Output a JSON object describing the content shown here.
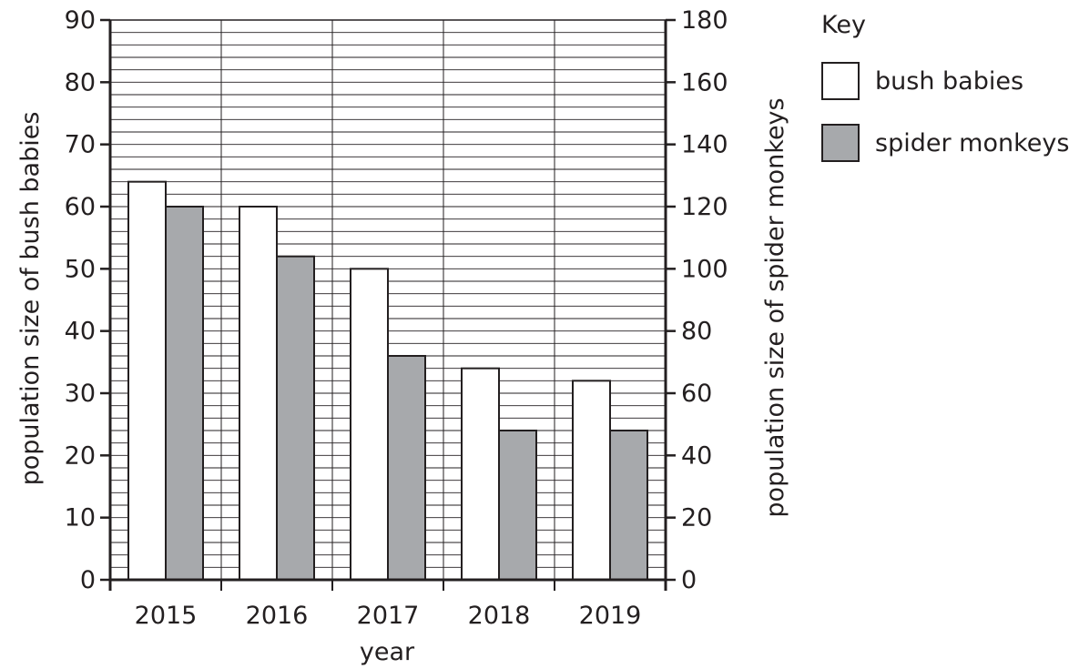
{
  "chart_data": {
    "type": "bar",
    "categories": [
      "2015",
      "2016",
      "2017",
      "2018",
      "2019"
    ],
    "xlabel": "year",
    "ylabel_left": "population size of bush babies",
    "ylabel_right": "population size of spider monkeys",
    "ylim_left": [
      0,
      90
    ],
    "ylim_right": [
      0,
      180
    ],
    "yticks_left": [
      0,
      10,
      20,
      30,
      40,
      50,
      60,
      70,
      80,
      90
    ],
    "yticks_right": [
      0,
      20,
      40,
      60,
      80,
      100,
      120,
      140,
      160,
      180
    ],
    "grid": true,
    "legend_title": "Key",
    "legend_position": "right",
    "series": [
      {
        "name": "bush babies",
        "axis": "left",
        "color": "#ffffff",
        "values": [
          64,
          60,
          50,
          34,
          32
        ]
      },
      {
        "name": "spider monkeys",
        "axis": "right",
        "color": "#a7a9ac",
        "values": [
          120,
          104,
          72,
          48,
          48
        ]
      }
    ]
  }
}
